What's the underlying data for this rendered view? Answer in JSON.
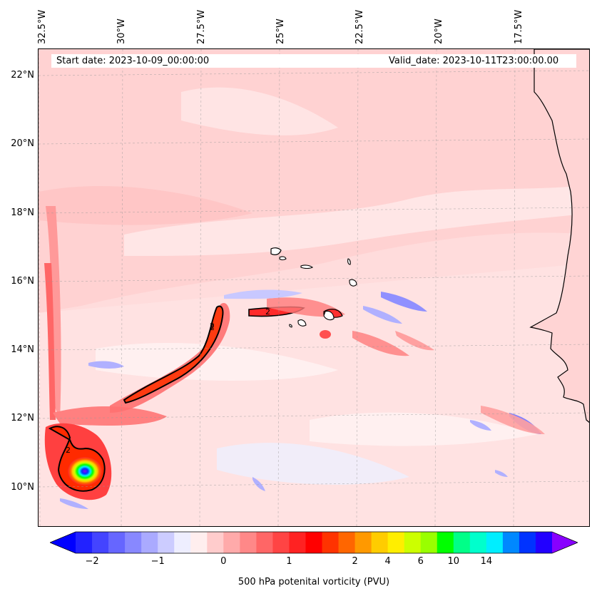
{
  "map": {
    "longitude_labels": [
      "32.5°W",
      "30°W",
      "27.5°W",
      "25°W",
      "22.5°W",
      "20°W",
      "17.5°W"
    ],
    "latitude_labels": [
      "22°N",
      "20°N",
      "18°N",
      "16°N",
      "14°N",
      "12°N",
      "10°N"
    ],
    "start_date": "Start date: 2023-10-09_00:00:00",
    "valid_date": "Valid_date: 2023-10-11T23:00:00.00",
    "contour_label": "2",
    "colors": {
      "background": "#ffe6e6",
      "light_pink": "#ffd0d0",
      "pink": "#ffb3b3",
      "red": "#ff3030",
      "red_orange": "#ff4500",
      "land_line": "#000000",
      "blue_light": "#e0e0ff",
      "blue": "#7070ff"
    }
  },
  "colorbar": {
    "tick_labels": [
      "−2",
      "−1",
      "0",
      "1",
      "2",
      "4",
      "6",
      "10",
      "14"
    ],
    "label": "500 hPa potenital vorticity (PVU)",
    "colors": [
      "#0000ff",
      "#2222ff",
      "#4444ff",
      "#6666ff",
      "#8888ff",
      "#aaaaff",
      "#ccccff",
      "#eeeeff",
      "#ffeeee",
      "#ffcccc",
      "#ffaaaa",
      "#ff8888",
      "#ff6666",
      "#ff4444",
      "#ff2222",
      "#ff0000",
      "#ff3300",
      "#ff6600",
      "#ff9900",
      "#ffcc00",
      "#ffee00",
      "#ccff00",
      "#99ff00",
      "#00ff00",
      "#00ff88",
      "#00ffcc",
      "#00eeff",
      "#0088ff",
      "#0033ff",
      "#2200ff",
      "#8800ff"
    ]
  }
}
